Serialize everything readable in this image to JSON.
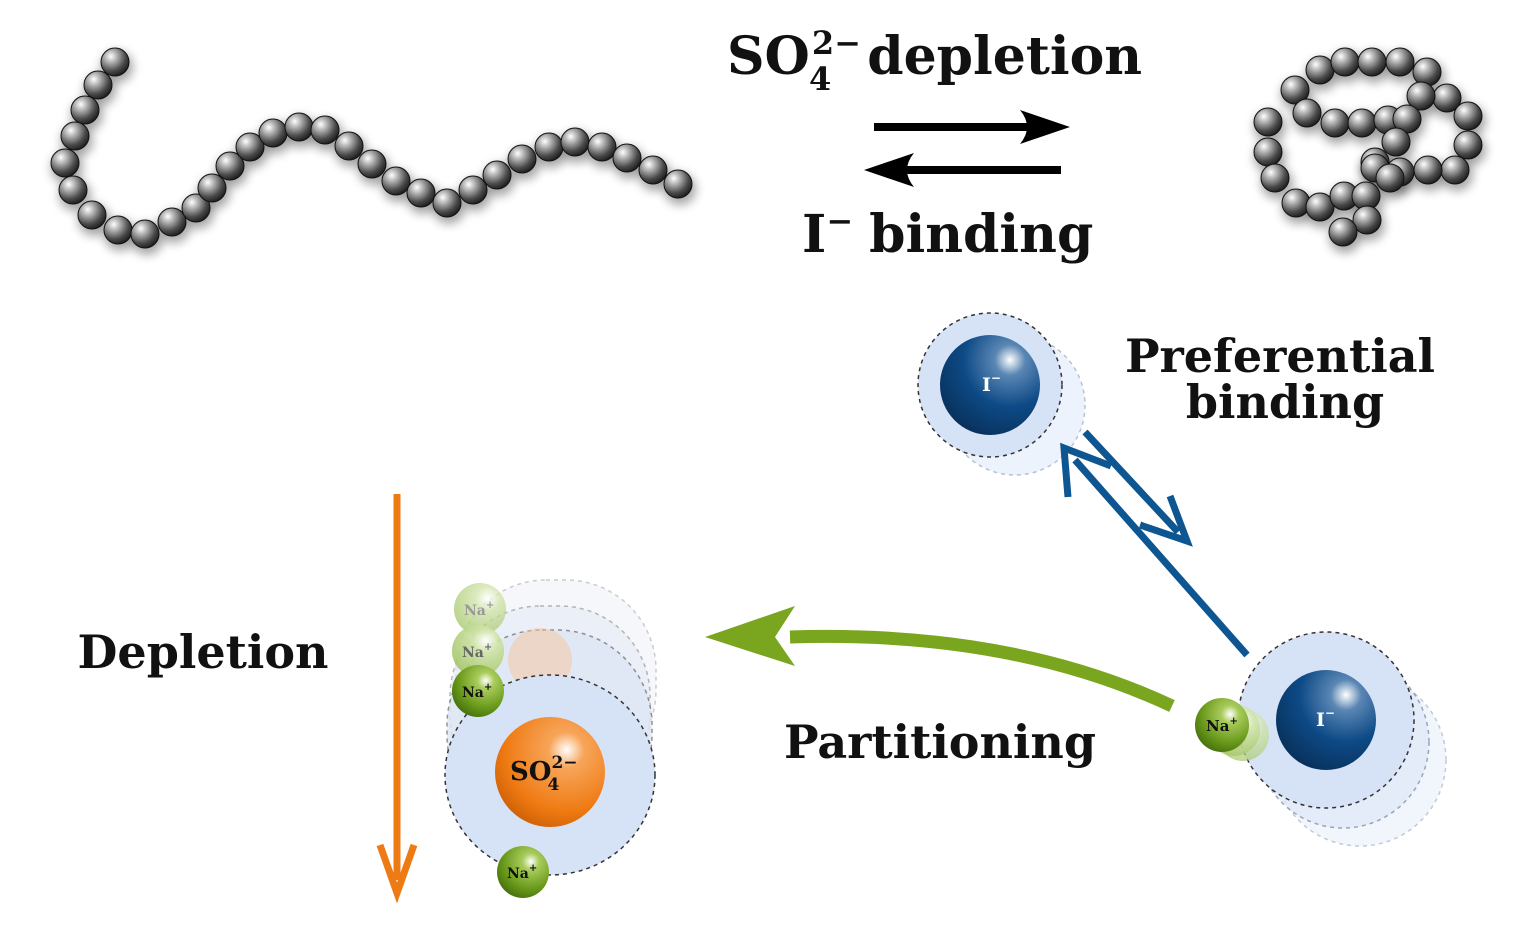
{
  "top": {
    "forward_main": "SO",
    "forward_sub": "4",
    "forward_sup": "2−",
    "forward_suffix": "depletion",
    "reverse_main": "I",
    "reverse_sup": "−",
    "reverse_suffix": "binding"
  },
  "labels": {
    "preferential_line1": "Preferential",
    "preferential_line2": "binding",
    "partitioning": "Partitioning",
    "depletion": "Depletion"
  },
  "ions": {
    "iodide_main": "I",
    "iodide_sup": "−",
    "sodium_main": "Na",
    "sodium_sup": "+",
    "sulfate_main": "SO",
    "sulfate_sub": "4",
    "sulfate_sup": "2−"
  },
  "colors": {
    "bead": "#555555",
    "iodide": "#0d4a86",
    "iodide_halo": "#d6e3f7",
    "sodium": "#6a9a1c",
    "sulfate": "#ef7a12",
    "partition_arrow": "#7aa51f",
    "binding_arrow": "#0d5692",
    "depletion_arrow": "#ee7a14"
  },
  "icons": {
    "polymer_extended": "extended-polymer-chain-icon",
    "polymer_collapsed": "collapsed-polymer-coil-icon"
  }
}
